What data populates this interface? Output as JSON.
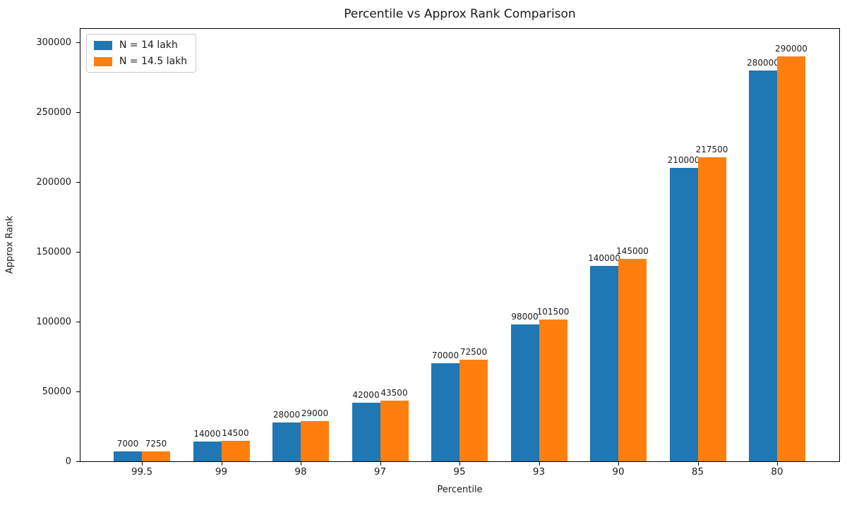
{
  "chart_data": {
    "type": "bar",
    "title": "Percentile vs Approx Rank Comparison",
    "xlabel": "Percentile",
    "ylabel": "Approx Rank",
    "categories": [
      "99.5",
      "99",
      "98",
      "97",
      "95",
      "93",
      "90",
      "85",
      "80"
    ],
    "series": [
      {
        "name": "N = 14 lakh",
        "color": "#1f77b4",
        "values": [
          7000,
          14000,
          28000,
          42000,
          70000,
          98000,
          140000,
          210000,
          280000
        ]
      },
      {
        "name": "N = 14.5 lakh",
        "color": "#ff7f0e",
        "values": [
          7250,
          14500,
          29000,
          43500,
          72500,
          101500,
          145000,
          217500,
          290000
        ]
      }
    ],
    "y_ticks": [
      0,
      50000,
      100000,
      150000,
      200000,
      250000,
      300000
    ],
    "ylim": [
      0,
      310000
    ],
    "grid": false,
    "legend_position": "upper left",
    "bar_labels_shown": true
  }
}
